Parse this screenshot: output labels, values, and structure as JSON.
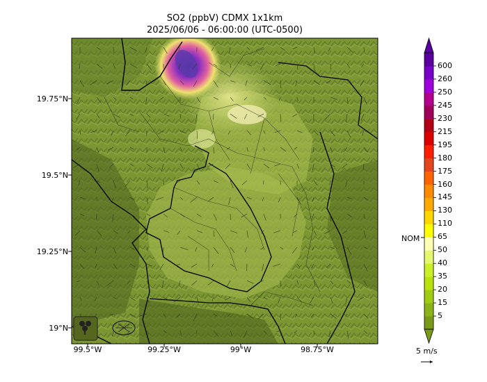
{
  "title": {
    "line1": "SO2 (ppbV) CDMX 1x1km",
    "line2": "2025/06/06 - 06:00:00 (UTC-0500)"
  },
  "map": {
    "lat_ticks": [
      "19.75°N",
      "19.5°N",
      "19.25°N",
      "19°N"
    ],
    "lon_ticks": [
      "99.5°W",
      "99.25°W",
      "99°W",
      "98.75°W"
    ],
    "lon_range": [
      -99.55,
      -98.55
    ],
    "lat_range": [
      18.95,
      19.95
    ]
  },
  "colorbar": {
    "levels": [
      "5",
      "15",
      "20",
      "35",
      "40",
      "50",
      "65",
      "110",
      "130",
      "145",
      "160",
      "175",
      "180",
      "195",
      "215",
      "230",
      "245",
      "250",
      "260",
      "600"
    ],
    "colors": [
      "#7a9a1a",
      "#8cb41a",
      "#a0cc14",
      "#b8e20a",
      "#ccf028",
      "#e6f870",
      "#ffffb4",
      "#ffff00",
      "#ffd700",
      "#ffaa00",
      "#ff8c00",
      "#ff6400",
      "#e6461e",
      "#ff1e00",
      "#dc0000",
      "#b40014",
      "#a0005a",
      "#b4008c",
      "#a000dc",
      "#7800c8",
      "#5a00a0"
    ],
    "nom_label": "NOM",
    "nom_value": "65"
  },
  "wind": {
    "scale_label": "5 m/s"
  }
}
